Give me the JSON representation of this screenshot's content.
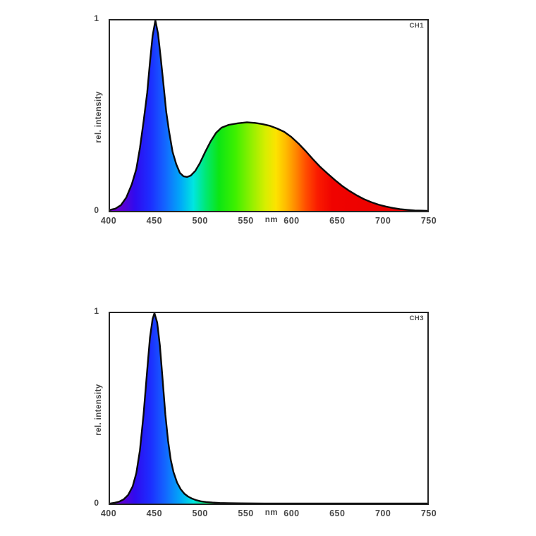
{
  "style": {
    "background": "#ffffff",
    "axis_border_color": "#242424",
    "tick_label_color": "#474747",
    "curve_stroke_color": "#0a0a0a",
    "spectrum_stops": [
      {
        "nm": 400,
        "color": "#7200c8"
      },
      {
        "nm": 414,
        "color": "#5a00d4"
      },
      {
        "nm": 428,
        "color": "#2e0cf0"
      },
      {
        "nm": 445,
        "color": "#1c2fff"
      },
      {
        "nm": 460,
        "color": "#1463ff"
      },
      {
        "nm": 478,
        "color": "#00aaf8"
      },
      {
        "nm": 492,
        "color": "#00e6e0"
      },
      {
        "nm": 505,
        "color": "#00e878"
      },
      {
        "nm": 520,
        "color": "#0ce614"
      },
      {
        "nm": 538,
        "color": "#3df000"
      },
      {
        "nm": 555,
        "color": "#8df000"
      },
      {
        "nm": 571,
        "color": "#d6ee00"
      },
      {
        "nm": 583,
        "color": "#fde300"
      },
      {
        "nm": 594,
        "color": "#ffba00"
      },
      {
        "nm": 605,
        "color": "#ff8700"
      },
      {
        "nm": 616,
        "color": "#ff4d00"
      },
      {
        "nm": 629,
        "color": "#fa1b00"
      },
      {
        "nm": 645,
        "color": "#f00300"
      },
      {
        "nm": 750,
        "color": "#e60000"
      }
    ]
  },
  "chart_data": [
    {
      "type": "area",
      "channel": "CH1",
      "ylabel": "rel. intensity",
      "x_unit": "nm",
      "x_unit_position": 578,
      "xlim": [
        400,
        750
      ],
      "ylim": [
        0,
        1
      ],
      "x_ticks": [
        400,
        450,
        500,
        550,
        600,
        650,
        700,
        750
      ],
      "y_tick_top": "1",
      "y_tick_bottom": "0",
      "line_color": "#0a0a0a",
      "fill": "visible-spectrum-gradient",
      "x": [
        400,
        406,
        412,
        418,
        424,
        429,
        433,
        437,
        441,
        444,
        447,
        450,
        453,
        456,
        459,
        462,
        465,
        469,
        473,
        477,
        481,
        485,
        489,
        494,
        499,
        505,
        511,
        517,
        523,
        531,
        541,
        551,
        560,
        568,
        576,
        584,
        592,
        600,
        608,
        616,
        624,
        632,
        640,
        648,
        656,
        664,
        672,
        680,
        688,
        696,
        704,
        712,
        720,
        728,
        736,
        744,
        750
      ],
      "y": [
        0.005,
        0.012,
        0.03,
        0.07,
        0.14,
        0.22,
        0.33,
        0.47,
        0.62,
        0.78,
        0.92,
        1.0,
        0.93,
        0.8,
        0.66,
        0.52,
        0.42,
        0.31,
        0.245,
        0.2,
        0.182,
        0.178,
        0.185,
        0.21,
        0.25,
        0.31,
        0.365,
        0.41,
        0.437,
        0.452,
        0.46,
        0.465,
        0.462,
        0.456,
        0.447,
        0.433,
        0.415,
        0.388,
        0.353,
        0.313,
        0.27,
        0.23,
        0.195,
        0.162,
        0.131,
        0.105,
        0.082,
        0.062,
        0.046,
        0.033,
        0.023,
        0.015,
        0.009,
        0.005,
        0.002,
        0.001,
        0.0
      ]
    },
    {
      "type": "area",
      "channel": "CH3",
      "ylabel": "rel. intensity",
      "x_unit": "nm",
      "x_unit_position": 578,
      "xlim": [
        400,
        750
      ],
      "ylim": [
        0,
        1
      ],
      "x_ticks": [
        400,
        450,
        500,
        550,
        600,
        650,
        700,
        750
      ],
      "y_tick_top": "1",
      "y_tick_bottom": "0",
      "line_color": "#0a0a0a",
      "fill": "visible-spectrum-gradient",
      "x": [
        400,
        405,
        410,
        415,
        420,
        425,
        429,
        433,
        437,
        441,
        444,
        447,
        449,
        452,
        455,
        458,
        461,
        464,
        467,
        470,
        474,
        478,
        482,
        486,
        490,
        495,
        500,
        506,
        513,
        521,
        530,
        545,
        570,
        620,
        750
      ],
      "y": [
        0.0,
        0.004,
        0.01,
        0.022,
        0.045,
        0.09,
        0.16,
        0.28,
        0.47,
        0.7,
        0.87,
        0.97,
        1.0,
        0.95,
        0.83,
        0.65,
        0.47,
        0.33,
        0.23,
        0.165,
        0.11,
        0.075,
        0.052,
        0.037,
        0.027,
        0.018,
        0.012,
        0.008,
        0.005,
        0.003,
        0.002,
        0.001,
        0.0,
        0.0,
        0.0
      ]
    }
  ]
}
